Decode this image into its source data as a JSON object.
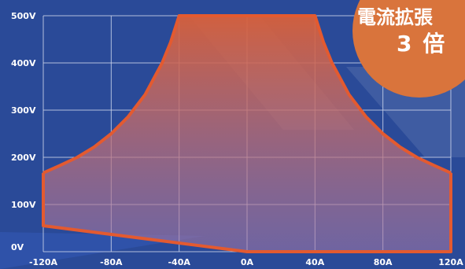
{
  "colors": {
    "background": "#2a4a98",
    "grid": "#c9d2ea",
    "curve": "#e35a30",
    "fill_top": "#d8603a",
    "fill_bottom": "#a87aa8",
    "badge": "#d9743c",
    "text": "#ffffff"
  },
  "badge": {
    "line1": "電流拡張",
    "line2": "3 倍"
  },
  "chart_data": {
    "type": "area",
    "x_unit": "A",
    "y_unit": "V",
    "xlim": [
      -120,
      120
    ],
    "ylim": [
      0,
      500
    ],
    "x_ticks": [
      "-120A",
      "-80A",
      "-40A",
      "0A",
      "40A",
      "80A",
      "120A"
    ],
    "y_ticks": [
      "0V",
      "100V",
      "200V",
      "300V",
      "400V",
      "500V"
    ],
    "grid": true,
    "upper_boundary": [
      {
        "x": -120,
        "y": 167
      },
      {
        "x": -110,
        "y": 183
      },
      {
        "x": -100,
        "y": 200
      },
      {
        "x": -90,
        "y": 222
      },
      {
        "x": -80,
        "y": 250
      },
      {
        "x": -70,
        "y": 286
      },
      {
        "x": -60,
        "y": 333
      },
      {
        "x": -50,
        "y": 400
      },
      {
        "x": -45,
        "y": 444
      },
      {
        "x": -40,
        "y": 500
      },
      {
        "x": 40,
        "y": 500
      },
      {
        "x": 45,
        "y": 444
      },
      {
        "x": 50,
        "y": 400
      },
      {
        "x": 60,
        "y": 333
      },
      {
        "x": 70,
        "y": 286
      },
      {
        "x": 80,
        "y": 250
      },
      {
        "x": 90,
        "y": 222
      },
      {
        "x": 100,
        "y": 200
      },
      {
        "x": 110,
        "y": 183
      },
      {
        "x": 120,
        "y": 167
      }
    ],
    "lower_boundary": [
      {
        "x": -120,
        "y": 55
      },
      {
        "x": 0,
        "y": 0
      },
      {
        "x": 120,
        "y": 0
      }
    ]
  }
}
